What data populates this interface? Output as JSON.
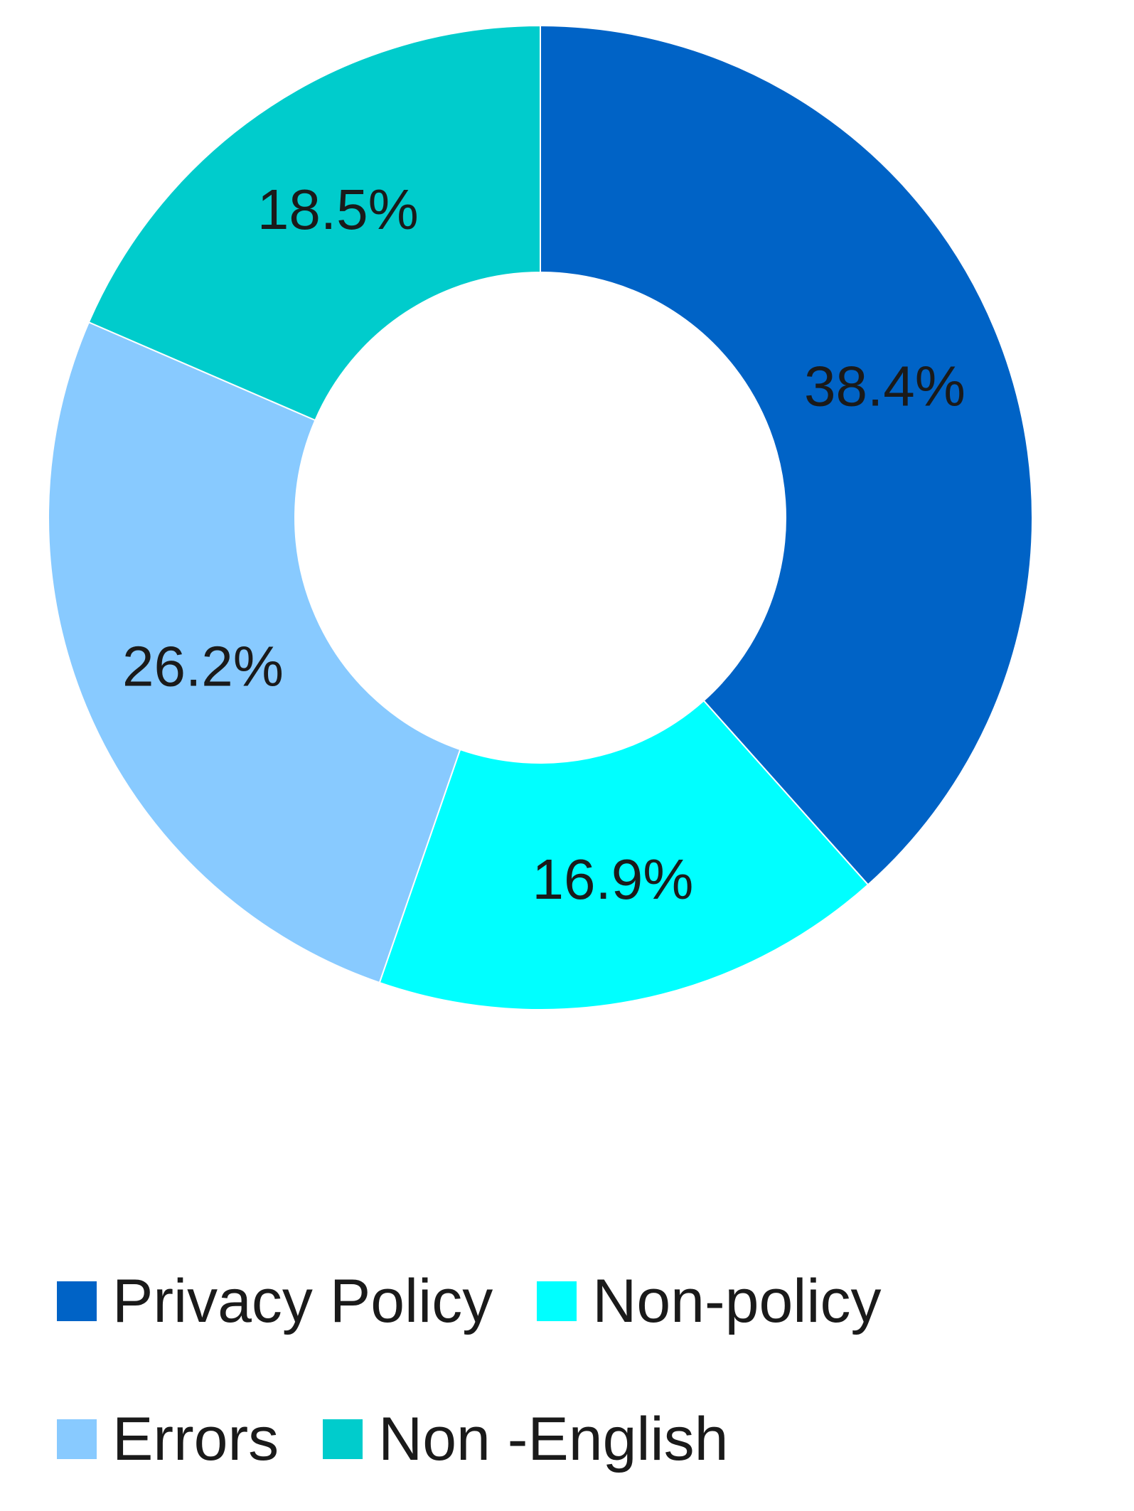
{
  "chart_data": {
    "type": "pie",
    "variant": "donut",
    "categories": [
      "Privacy Policy",
      "Non-policy",
      "Errors",
      "Non -English"
    ],
    "values": [
      38.4,
      16.9,
      26.2,
      18.5
    ],
    "labels": [
      "38.4%",
      "16.9%",
      "26.2%",
      "18.5%"
    ],
    "colors": [
      "#0063C6",
      "#00FFFF",
      "#88CAFF",
      "#00CCCC"
    ],
    "start_angle": "12 o'clock",
    "direction": "clockwise",
    "legend_position": "bottom"
  }
}
